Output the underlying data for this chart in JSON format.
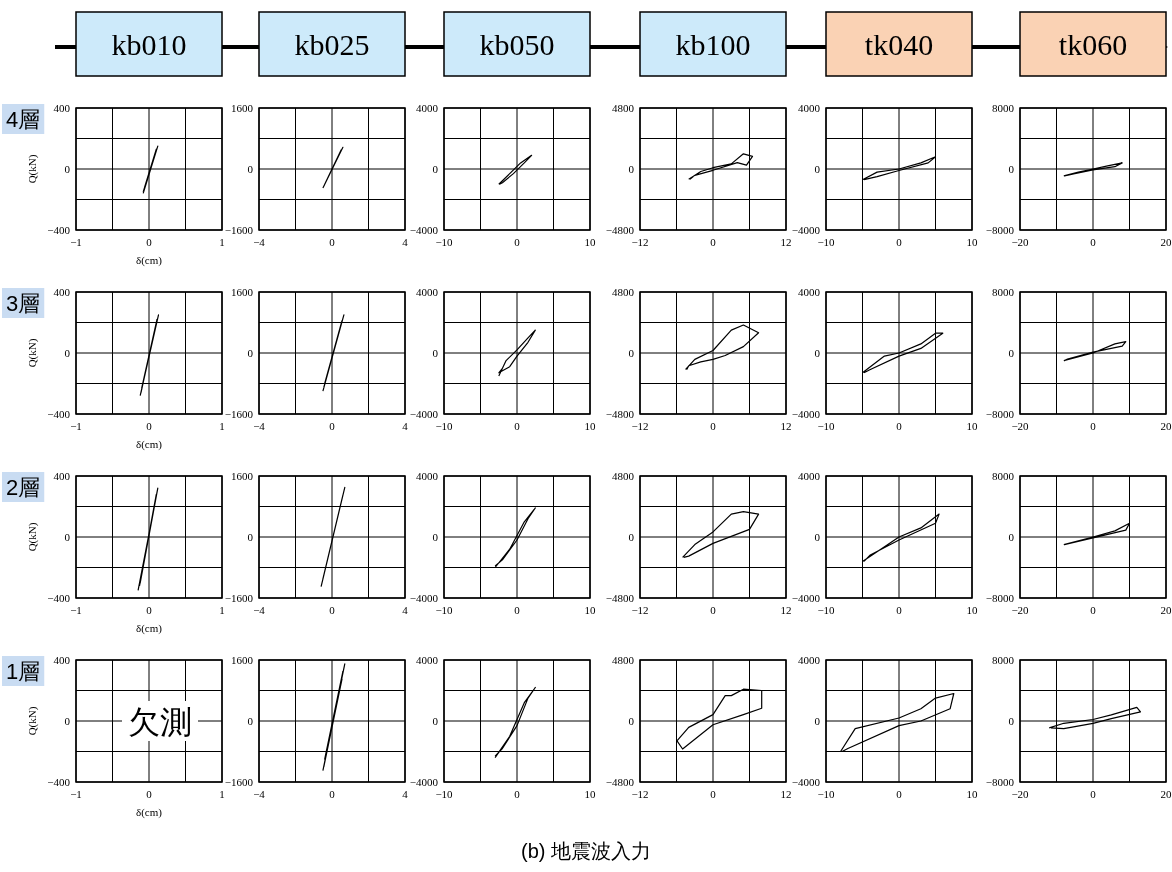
{
  "chart_data": [
    {
      "type": "line",
      "title": "kb010",
      "annotations": [
        "4層"
      ],
      "xlabel": "δ(cm)",
      "ylabel": "Q(kN)",
      "grid": true,
      "xlim": [
        -1,
        1
      ],
      "ylim": [
        -400,
        400
      ],
      "xticks": [
        {
          "value": -1,
          "label": "−1"
        },
        {
          "value": -0.5,
          "label": null
        },
        0,
        {
          "value": 0.5,
          "label": null
        },
        1
      ],
      "yticks": [
        {
          "value": -400,
          "label": "−400"
        },
        {
          "value": -200,
          "label": null
        },
        0,
        {
          "value": 200,
          "label": null
        },
        400
      ],
      "series": [
        {
          "color": "#000000",
          "x": [
            -0.08,
            0.12,
            -0.06,
            0.1,
            -0.08
          ],
          "values": [
            -160,
            150,
            -120,
            130,
            -150
          ]
        }
      ]
    },
    {
      "type": "line",
      "title": "kb025",
      "grid": true,
      "xlim": [
        -4,
        4
      ],
      "ylim": [
        -1600,
        1600
      ],
      "xticks": [
        {
          "value": -4,
          "label": "−4"
        },
        {
          "value": -2,
          "label": null
        },
        0,
        {
          "value": 2,
          "label": null
        },
        4
      ],
      "yticks": [
        {
          "value": -1600,
          "label": "−1600"
        },
        {
          "value": -800,
          "label": null
        },
        0,
        {
          "value": 800,
          "label": null
        },
        1600
      ],
      "series": [
        {
          "color": "#000000",
          "x": [
            -0.5,
            0.6,
            -0.4,
            0.5,
            -0.45
          ],
          "values": [
            -500,
            570,
            -400,
            500,
            -450
          ]
        }
      ]
    },
    {
      "type": "line",
      "title": "kb050",
      "grid": true,
      "xlim": [
        -10,
        10
      ],
      "ylim": [
        -4000,
        4000
      ],
      "xticks": [
        {
          "value": -10,
          "label": "−10"
        },
        {
          "value": -5,
          "label": null
        },
        0,
        {
          "value": 5,
          "label": null
        },
        10
      ],
      "yticks": [
        {
          "value": -4000,
          "label": "−4000"
        },
        {
          "value": -2000,
          "label": null
        },
        0,
        {
          "value": 2000,
          "label": null
        },
        4000
      ],
      "series": [
        {
          "color": "#000000",
          "x": [
            -2.5,
            -1,
            0.5,
            2,
            1,
            -0.5,
            -2,
            -2.4
          ],
          "values": [
            -1000,
            -300,
            400,
            900,
            400,
            -300,
            -900,
            -1000
          ]
        }
      ]
    },
    {
      "type": "line",
      "title": "kb100",
      "grid": true,
      "xlim": [
        -12,
        12
      ],
      "ylim": [
        -4800,
        4800
      ],
      "xticks": [
        {
          "value": -12,
          "label": "−12"
        },
        {
          "value": -6,
          "label": null
        },
        0,
        {
          "value": 6,
          "label": null
        },
        12
      ],
      "yticks": [
        {
          "value": -4800,
          "label": "−4800"
        },
        {
          "value": -2400,
          "label": null
        },
        0,
        {
          "value": 2400,
          "label": null
        },
        4800
      ],
      "series": [
        {
          "color": "#000000",
          "x": [
            -4,
            -2,
            0,
            3,
            5,
            6.5,
            5.5,
            4,
            0,
            -3,
            -3.8
          ],
          "values": [
            -800,
            -200,
            100,
            400,
            1200,
            1000,
            300,
            500,
            -100,
            -500,
            -800
          ]
        }
      ]
    },
    {
      "type": "line",
      "title": "tk040",
      "grid": true,
      "xlim": [
        -10,
        10
      ],
      "ylim": [
        -4000,
        4000
      ],
      "xticks": [
        {
          "value": -10,
          "label": "−10"
        },
        {
          "value": -5,
          "label": null
        },
        0,
        {
          "value": 5,
          "label": null
        },
        10
      ],
      "yticks": [
        {
          "value": -4000,
          "label": "−4000"
        },
        {
          "value": -2000,
          "label": null
        },
        0,
        {
          "value": 2000,
          "label": null
        },
        4000
      ],
      "series": [
        {
          "color": "#000000",
          "x": [
            -5,
            -3,
            0,
            3,
            5,
            4,
            0,
            -3,
            -4.8
          ],
          "values": [
            -700,
            -200,
            0,
            400,
            800,
            400,
            -100,
            -500,
            -700
          ]
        }
      ]
    },
    {
      "type": "line",
      "title": "tk060",
      "grid": true,
      "xlim": [
        -20,
        20
      ],
      "ylim": [
        -8000,
        8000
      ],
      "xticks": [
        {
          "value": -20,
          "label": "−20"
        },
        {
          "value": -10,
          "label": null
        },
        0,
        {
          "value": 10,
          "label": null
        },
        20
      ],
      "yticks": [
        {
          "value": -8000,
          "label": "−8000"
        },
        {
          "value": -4000,
          "label": null
        },
        0,
        {
          "value": 4000,
          "label": null
        },
        8000
      ],
      "series": [
        {
          "color": "#000000",
          "x": [
            -8,
            -4,
            0,
            4,
            8,
            6,
            0,
            -5,
            -7.8
          ],
          "values": [
            -900,
            -400,
            0,
            400,
            800,
            300,
            -100,
            -600,
            -900
          ]
        }
      ]
    },
    {
      "type": "line",
      "annotations": [
        "3層"
      ],
      "xlabel": "δ(cm)",
      "ylabel": "Q(kN)",
      "grid": true,
      "xlim": [
        -1,
        1
      ],
      "ylim": [
        -400,
        400
      ],
      "xticks": [
        {
          "value": -1,
          "label": "−1"
        },
        {
          "value": -0.5,
          "label": null
        },
        0,
        {
          "value": 0.5,
          "label": null
        },
        1
      ],
      "yticks": [
        {
          "value": -400,
          "label": "−400"
        },
        {
          "value": -200,
          "label": null
        },
        0,
        {
          "value": 200,
          "label": null
        },
        400
      ],
      "series": [
        {
          "color": "#000000",
          "x": [
            -0.12,
            0.13,
            -0.1,
            0.11,
            -0.11
          ],
          "values": [
            -280,
            250,
            -230,
            220,
            -260
          ]
        }
      ]
    },
    {
      "type": "line",
      "grid": true,
      "xlim": [
        -4,
        4
      ],
      "ylim": [
        -1600,
        1600
      ],
      "xticks": [
        {
          "value": -4,
          "label": "−4"
        },
        {
          "value": -2,
          "label": null
        },
        0,
        {
          "value": 2,
          "label": null
        },
        4
      ],
      "yticks": [
        {
          "value": -1600,
          "label": "−1600"
        },
        {
          "value": -800,
          "label": null
        },
        0,
        {
          "value": 800,
          "label": null
        },
        1600
      ],
      "series": [
        {
          "color": "#000000",
          "x": [
            -0.5,
            0.65,
            -0.4,
            0.55,
            -0.45
          ],
          "values": [
            -1000,
            1000,
            -800,
            850,
            -900
          ]
        }
      ]
    },
    {
      "type": "line",
      "grid": true,
      "xlim": [
        -10,
        10
      ],
      "ylim": [
        -4000,
        4000
      ],
      "xticks": [
        {
          "value": -10,
          "label": "−10"
        },
        {
          "value": -5,
          "label": null
        },
        0,
        {
          "value": 5,
          "label": null
        },
        10
      ],
      "yticks": [
        {
          "value": -4000,
          "label": "−4000"
        },
        {
          "value": -2000,
          "label": null
        },
        0,
        {
          "value": 2000,
          "label": null
        },
        4000
      ],
      "series": [
        {
          "color": "#000000",
          "x": [
            -2.5,
            -1.5,
            0,
            1.5,
            2.5,
            1.5,
            0,
            -1,
            -2.5,
            -2
          ],
          "values": [
            -1500,
            -500,
            200,
            1000,
            1500,
            700,
            -200,
            -900,
            -1300,
            -1000
          ]
        }
      ]
    },
    {
      "type": "line",
      "grid": true,
      "xlim": [
        -12,
        12
      ],
      "ylim": [
        -4800,
        4800
      ],
      "xticks": [
        {
          "value": -12,
          "label": "−12"
        },
        {
          "value": -6,
          "label": null
        },
        0,
        {
          "value": 6,
          "label": null
        },
        12
      ],
      "yticks": [
        {
          "value": -4800,
          "label": "−4800"
        },
        {
          "value": -2400,
          "label": null
        },
        0,
        {
          "value": 2400,
          "label": null
        },
        4800
      ],
      "series": [
        {
          "color": "#000000",
          "x": [
            -4.5,
            -3,
            0,
            3,
            5,
            7.5,
            5,
            2,
            0,
            -2,
            -4,
            -4.3
          ],
          "values": [
            -1300,
            -500,
            200,
            1800,
            2200,
            1600,
            500,
            -200,
            -500,
            -700,
            -1000,
            -1300
          ]
        }
      ]
    },
    {
      "type": "line",
      "grid": true,
      "xlim": [
        -10,
        10
      ],
      "ylim": [
        -4000,
        4000
      ],
      "xticks": [
        {
          "value": -10,
          "label": "−10"
        },
        {
          "value": -5,
          "label": null
        },
        0,
        {
          "value": 5,
          "label": null
        },
        10
      ],
      "yticks": [
        {
          "value": -4000,
          "label": "−4000"
        },
        {
          "value": -2000,
          "label": null
        },
        0,
        {
          "value": 2000,
          "label": null
        },
        4000
      ],
      "series": [
        {
          "color": "#000000",
          "x": [
            -5,
            -2,
            0,
            3,
            5,
            6,
            3,
            0,
            -4,
            -4.8
          ],
          "values": [
            -1300,
            -200,
            0,
            600,
            1300,
            1300,
            300,
            -200,
            -1100,
            -1300
          ]
        }
      ]
    },
    {
      "type": "line",
      "grid": true,
      "xlim": [
        -20,
        20
      ],
      "ylim": [
        -8000,
        8000
      ],
      "xticks": [
        {
          "value": -20,
          "label": "−20"
        },
        {
          "value": -10,
          "label": null
        },
        0,
        {
          "value": 10,
          "label": null
        },
        20
      ],
      "yticks": [
        {
          "value": -8000,
          "label": "−8000"
        },
        {
          "value": -4000,
          "label": null
        },
        0,
        {
          "value": 4000,
          "label": null
        },
        8000
      ],
      "series": [
        {
          "color": "#000000",
          "x": [
            -8,
            0,
            6,
            9,
            8,
            0,
            -7,
            -7.8
          ],
          "values": [
            -1000,
            0,
            1200,
            1500,
            900,
            100,
            -800,
            -1000
          ]
        }
      ]
    },
    {
      "type": "line",
      "annotations": [
        "2層"
      ],
      "xlabel": "δ(cm)",
      "ylabel": "Q(kN)",
      "grid": true,
      "xlim": [
        -1,
        1
      ],
      "ylim": [
        -400,
        400
      ],
      "xticks": [
        {
          "value": -1,
          "label": "−1"
        },
        {
          "value": -0.5,
          "label": null
        },
        0,
        {
          "value": 0.5,
          "label": null
        },
        1
      ],
      "yticks": [
        {
          "value": -400,
          "label": "−400"
        },
        {
          "value": -200,
          "label": null
        },
        0,
        {
          "value": 200,
          "label": null
        },
        400
      ],
      "series": [
        {
          "color": "#000000",
          "x": [
            -0.15,
            0.12,
            -0.12,
            0.1,
            -0.13
          ],
          "values": [
            -350,
            320,
            -300,
            280,
            -320
          ]
        }
      ]
    },
    {
      "type": "line",
      "grid": true,
      "xlim": [
        -4,
        4
      ],
      "ylim": [
        -1600,
        1600
      ],
      "xticks": [
        {
          "value": -4,
          "label": "−4"
        },
        {
          "value": -2,
          "label": null
        },
        0,
        {
          "value": 2,
          "label": null
        },
        4
      ],
      "yticks": [
        {
          "value": -1600,
          "label": "−1600"
        },
        {
          "value": -800,
          "label": null
        },
        0,
        {
          "value": 800,
          "label": null
        },
        1600
      ],
      "series": [
        {
          "color": "#000000",
          "x": [
            -0.6,
            0.7,
            -0.5,
            0.6,
            -0.55
          ],
          "values": [
            -1300,
            1300,
            -1100,
            1100,
            -1200
          ]
        }
      ]
    },
    {
      "type": "line",
      "grid": true,
      "xlim": [
        -10,
        10
      ],
      "ylim": [
        -4000,
        4000
      ],
      "xticks": [
        {
          "value": -10,
          "label": "−10"
        },
        {
          "value": -5,
          "label": null
        },
        0,
        {
          "value": 5,
          "label": null
        },
        10
      ],
      "yticks": [
        {
          "value": -4000,
          "label": "−4000"
        },
        {
          "value": -2000,
          "label": null
        },
        0,
        {
          "value": 2000,
          "label": null
        },
        4000
      ],
      "series": [
        {
          "color": "#000000",
          "x": [
            -3,
            -1,
            1,
            2.5,
            1.5,
            0,
            -2,
            -3
          ],
          "values": [
            -2000,
            -800,
            1000,
            1900,
            1200,
            -200,
            -1500,
            -1900
          ]
        }
      ]
    },
    {
      "type": "line",
      "grid": true,
      "xlim": [
        -12,
        12
      ],
      "ylim": [
        -4800,
        4800
      ],
      "xticks": [
        {
          "value": -12,
          "label": "−12"
        },
        {
          "value": -6,
          "label": null
        },
        0,
        {
          "value": 6,
          "label": null
        },
        12
      ],
      "yticks": [
        {
          "value": -4800,
          "label": "−4800"
        },
        {
          "value": -2400,
          "label": null
        },
        0,
        {
          "value": 2400,
          "label": null
        },
        4800
      ],
      "series": [
        {
          "color": "#000000",
          "x": [
            -5,
            -3,
            0,
            3,
            5,
            7.5,
            6,
            0,
            -4,
            -4.8
          ],
          "values": [
            -1600,
            -600,
            400,
            1800,
            2000,
            1800,
            600,
            -500,
            -1500,
            -1600
          ]
        }
      ]
    },
    {
      "type": "line",
      "grid": true,
      "xlim": [
        -10,
        10
      ],
      "ylim": [
        -4000,
        4000
      ],
      "xticks": [
        {
          "value": -10,
          "label": "−10"
        },
        {
          "value": -5,
          "label": null
        },
        0,
        {
          "value": 5,
          "label": null
        },
        10
      ],
      "yticks": [
        {
          "value": -4000,
          "label": "−4000"
        },
        {
          "value": -2000,
          "label": null
        },
        0,
        {
          "value": 2000,
          "label": null
        },
        4000
      ],
      "series": [
        {
          "color": "#000000",
          "x": [
            -5,
            0,
            3,
            5.5,
            5,
            0,
            -4,
            -4.8
          ],
          "values": [
            -1600,
            0,
            600,
            1500,
            900,
            -200,
            -1200,
            -1600
          ]
        }
      ]
    },
    {
      "type": "line",
      "grid": true,
      "xlim": [
        -20,
        20
      ],
      "ylim": [
        -8000,
        8000
      ],
      "xticks": [
        {
          "value": -20,
          "label": "−20"
        },
        {
          "value": -10,
          "label": null
        },
        0,
        {
          "value": 10,
          "label": null
        },
        20
      ],
      "yticks": [
        {
          "value": -8000,
          "label": "−8000"
        },
        {
          "value": -4000,
          "label": null
        },
        0,
        {
          "value": 4000,
          "label": null
        },
        8000
      ],
      "series": [
        {
          "color": "#000000",
          "x": [
            -8,
            0,
            6,
            10,
            9,
            0,
            -7,
            -7.8
          ],
          "values": [
            -1000,
            0,
            800,
            1800,
            900,
            -100,
            -900,
            -1000
          ]
        }
      ]
    },
    {
      "type": "line",
      "annotations": [
        "1層",
        "欠測"
      ],
      "xlabel": "δ(cm)",
      "ylabel": "Q(kN)",
      "grid": true,
      "xlim": [
        -1,
        1
      ],
      "ylim": [
        -400,
        400
      ],
      "xticks": [
        {
          "value": -1,
          "label": "−1"
        },
        {
          "value": -0.5,
          "label": null
        },
        0,
        {
          "value": 0.5,
          "label": null
        },
        1
      ],
      "yticks": [
        {
          "value": -400,
          "label": "−400"
        },
        {
          "value": -200,
          "label": null
        },
        0,
        {
          "value": 200,
          "label": null
        },
        400
      ]
    },
    {
      "type": "line",
      "grid": true,
      "xlim": [
        -4,
        4
      ],
      "ylim": [
        -1600,
        1600
      ],
      "xticks": [
        {
          "value": -4,
          "label": "−4"
        },
        {
          "value": -2,
          "label": null
        },
        0,
        {
          "value": 2,
          "label": null
        },
        4
      ],
      "yticks": [
        {
          "value": -1600,
          "label": "−1600"
        },
        {
          "value": -800,
          "label": null
        },
        0,
        {
          "value": 800,
          "label": null
        },
        1600
      ],
      "series": [
        {
          "color": "#000000",
          "x": [
            -0.5,
            0.7,
            -0.4,
            0.6,
            -0.45,
            0.55,
            -0.45
          ],
          "values": [
            -1300,
            1500,
            -1000,
            1300,
            -1200,
            1100,
            -1200
          ]
        }
      ]
    },
    {
      "type": "line",
      "grid": true,
      "xlim": [
        -10,
        10
      ],
      "ylim": [
        -4000,
        4000
      ],
      "xticks": [
        {
          "value": -10,
          "label": "−10"
        },
        {
          "value": -5,
          "label": null
        },
        0,
        {
          "value": 5,
          "label": null
        },
        10
      ],
      "yticks": [
        {
          "value": -4000,
          "label": "−4000"
        },
        {
          "value": -2000,
          "label": null
        },
        0,
        {
          "value": 2000,
          "label": null
        },
        4000
      ],
      "series": [
        {
          "color": "#000000",
          "x": [
            -3,
            -1,
            1,
            2.5,
            1.5,
            0,
            -2,
            -3
          ],
          "values": [
            -2400,
            -1000,
            1200,
            2200,
            1500,
            -300,
            -1800,
            -2300
          ]
        }
      ]
    },
    {
      "type": "line",
      "grid": true,
      "xlim": [
        -12,
        12
      ],
      "ylim": [
        -4800,
        4800
      ],
      "xticks": [
        {
          "value": -12,
          "label": "−12"
        },
        {
          "value": -6,
          "label": null
        },
        0,
        {
          "value": 6,
          "label": null
        },
        12
      ],
      "yticks": [
        {
          "value": -4800,
          "label": "−4800"
        },
        {
          "value": -2400,
          "label": null
        },
        0,
        {
          "value": 2400,
          "label": null
        },
        4800
      ],
      "series": [
        {
          "color": "#000000",
          "x": [
            -6,
            -4,
            0,
            2,
            3,
            5,
            8,
            8,
            5,
            0,
            -5,
            -6
          ],
          "values": [
            -1600,
            -500,
            500,
            2000,
            2000,
            2500,
            2400,
            1000,
            500,
            -300,
            -2200,
            -1500
          ]
        }
      ]
    },
    {
      "type": "line",
      "grid": true,
      "xlim": [
        -10,
        10
      ],
      "ylim": [
        -4000,
        4000
      ],
      "xticks": [
        {
          "value": -10,
          "label": "−10"
        },
        {
          "value": -5,
          "label": null
        },
        0,
        {
          "value": 5,
          "label": null
        },
        10
      ],
      "yticks": [
        {
          "value": -4000,
          "label": "−4000"
        },
        {
          "value": -2000,
          "label": null
        },
        0,
        {
          "value": 2000,
          "label": null
        },
        4000
      ],
      "series": [
        {
          "color": "#000000",
          "x": [
            -8,
            -6,
            0,
            3,
            5,
            7.5,
            7,
            3,
            0,
            -7,
            -7.8
          ],
          "values": [
            -2000,
            -500,
            200,
            800,
            1500,
            1800,
            800,
            0,
            -300,
            -1800,
            -2000
          ]
        }
      ]
    },
    {
      "type": "line",
      "grid": true,
      "xlim": [
        -20,
        20
      ],
      "ylim": [
        -8000,
        8000
      ],
      "xticks": [
        {
          "value": -20,
          "label": "−20"
        },
        {
          "value": -10,
          "label": null
        },
        0,
        {
          "value": 10,
          "label": null
        },
        20
      ],
      "yticks": [
        {
          "value": -8000,
          "label": "−8000"
        },
        {
          "value": -4000,
          "label": null
        },
        0,
        {
          "value": 4000,
          "label": null
        },
        8000
      ],
      "series": [
        {
          "color": "#000000",
          "x": [
            -12,
            -8,
            0,
            5,
            12,
            13,
            5,
            0,
            -8,
            -11.5
          ],
          "values": [
            -900,
            -300,
            200,
            800,
            1800,
            1200,
            300,
            -300,
            -1000,
            -900
          ]
        }
      ]
    },
    {
      "type": "other",
      "title": "(b) 地震波入力"
    }
  ]
}
